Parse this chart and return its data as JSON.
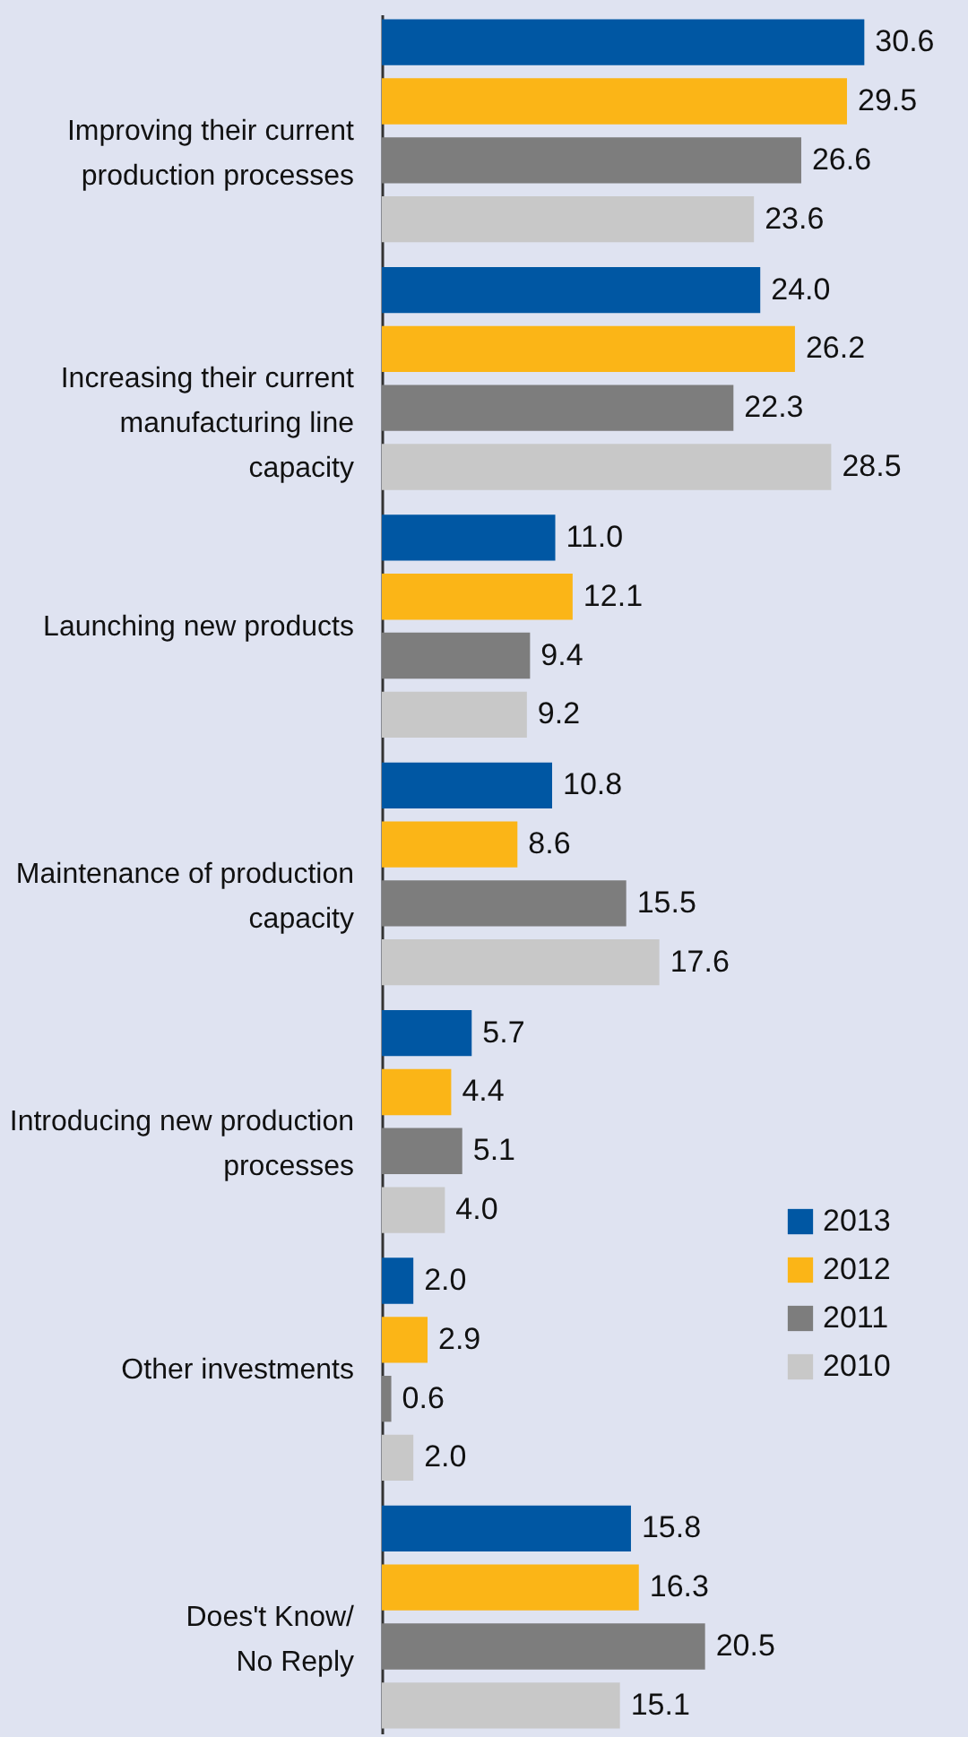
{
  "chart_data": {
    "type": "bar",
    "orientation": "horizontal",
    "legend": "right",
    "grid": false,
    "categories": [
      "Improving their current production processes",
      "Increasing their current manufacturing line capacity",
      "Launching new products",
      "Maintenance of production capacity",
      "Introducing new production processes",
      "Other investments",
      "Does't Know/ No Reply"
    ],
    "series": [
      {
        "name": "2013",
        "color": "#0057a3",
        "values": [
          30.6,
          24.0,
          11.0,
          10.8,
          5.7,
          2.0,
          15.8
        ],
        "value_labels": [
          "30.6",
          "24.0",
          "11.0",
          "10.8",
          "5.7",
          "2.0",
          "15.8"
        ]
      },
      {
        "name": "2012",
        "color": "#fbb517",
        "values": [
          29.5,
          26.2,
          12.1,
          8.6,
          4.4,
          2.9,
          16.3
        ],
        "value_labels": [
          "29.5",
          "26.2",
          "12.1",
          "8.6",
          "4.4",
          "2.9",
          "16.3"
        ]
      },
      {
        "name": "2011",
        "color": "#7d7d7d",
        "values": [
          26.6,
          22.3,
          9.4,
          15.5,
          5.1,
          0.6,
          20.5
        ],
        "value_labels": [
          "26.6",
          "22.3",
          "9.4",
          "15.5",
          "5.1",
          "0.6",
          "20.5"
        ]
      },
      {
        "name": "2010",
        "color": "#c8c8c8",
        "values": [
          23.6,
          28.5,
          9.2,
          17.6,
          4.0,
          2.0,
          15.1
        ],
        "value_labels": [
          "23.6",
          "28.5",
          "9.2",
          "17.6",
          "4.0",
          "2.0",
          "15.1"
        ]
      }
    ]
  }
}
